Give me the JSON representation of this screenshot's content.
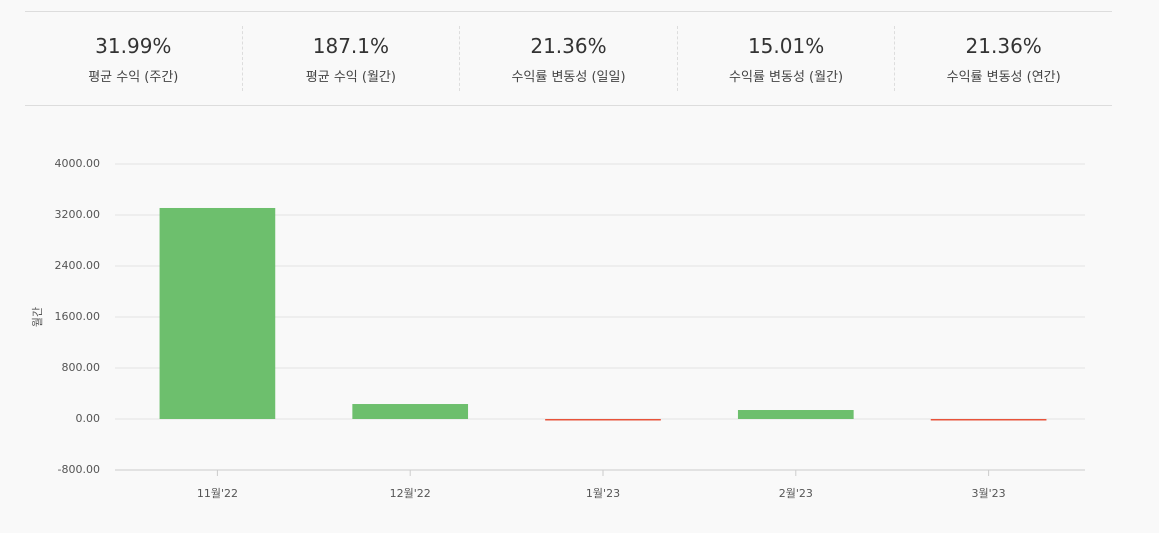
{
  "stats": [
    {
      "value": "31.99%",
      "label": "평균 수익 (주간)"
    },
    {
      "value": "187.1%",
      "label": "평균 수익 (월간)"
    },
    {
      "value": "21.36%",
      "label": "수익률 변동성 (일일)"
    },
    {
      "value": "15.01%",
      "label": "수익률 변동성 (월간)"
    },
    {
      "value": "21.36%",
      "label": "수익률 변동성 (연간)"
    }
  ],
  "chart_data": {
    "type": "bar",
    "y_label": "월간",
    "categories": [
      "11월'22",
      "12월'22",
      "1월'23",
      "2월'23",
      "3월'23"
    ],
    "values": [
      3310,
      235,
      -10,
      141,
      -15
    ],
    "positive_color": "#6dbf6d",
    "negative_color": "#e8533a",
    "ylim": [
      -800,
      4000
    ],
    "yticks": [
      {
        "value": -800,
        "label": "-800.00"
      },
      {
        "value": 0,
        "label": "0.00"
      },
      {
        "value": 800,
        "label": "800.00"
      },
      {
        "value": 1600,
        "label": "1600.00"
      },
      {
        "value": 2400,
        "label": "2400.00"
      },
      {
        "value": 3200,
        "label": "3200.00"
      },
      {
        "value": 4000,
        "label": "4000.00"
      }
    ],
    "grid": true
  }
}
